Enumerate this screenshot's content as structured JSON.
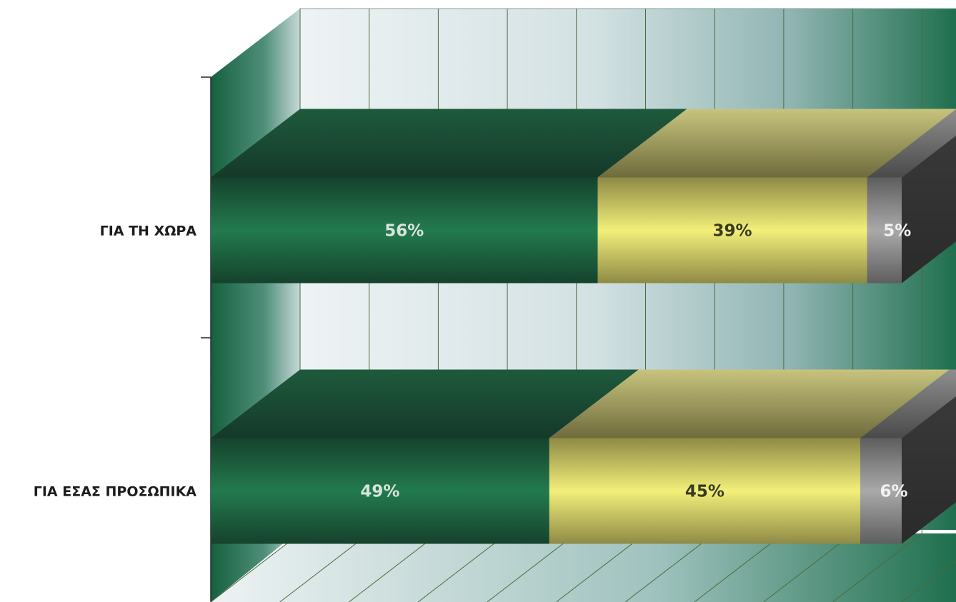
{
  "chart_data": {
    "type": "bar",
    "orientation": "horizontal",
    "stacked": true,
    "percent": true,
    "style": "3d",
    "categories": [
      "ΓΙΑ ΤΗ ΧΩΡΑ",
      "ΓΙΑ ΕΣΑΣ ΠΡΟΣΩΠΙΚΑ"
    ],
    "series": [
      {
        "values": [
          56,
          49
        ],
        "labels": [
          "56%",
          "49%"
        ],
        "color": "#1f6b45",
        "label_color": "#d8e4dc"
      },
      {
        "values": [
          39,
          45
        ],
        "labels": [
          "39%",
          "45%"
        ],
        "color": "#e4e06a",
        "label_color": "#3a3a22"
      },
      {
        "values": [
          5,
          6
        ],
        "labels": [
          "5%",
          "6%"
        ],
        "color": "#8a8a8a",
        "label_color": "#f2f2f2"
      }
    ],
    "xlim": [
      0,
      100
    ],
    "grid": true,
    "legend": "none",
    "colors": {
      "wall_light": "#e8eef0",
      "wall_dark": "#2f7a5c",
      "gridline": "#4c6a3a",
      "side_wall": "#1e6b4a"
    }
  }
}
